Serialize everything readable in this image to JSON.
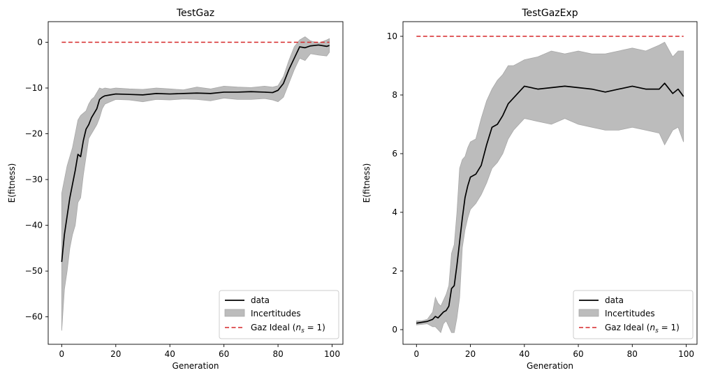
{
  "chart_data": [
    {
      "type": "line",
      "title": "TestGaz",
      "xlabel": "Generation",
      "ylabel": "E(fitness)",
      "xlim": [
        -5,
        104
      ],
      "ylim": [
        -66,
        4.5
      ],
      "xticks": [
        "0",
        "20",
        "40",
        "60",
        "80",
        "100"
      ],
      "yticks": [
        "−60",
        "−50",
        "−40",
        "−30",
        "−20",
        "−10",
        "0"
      ],
      "ytick_values": [
        -60,
        -50,
        -40,
        -30,
        -20,
        -10,
        0
      ],
      "xtick_values": [
        0,
        20,
        40,
        60,
        80,
        100
      ],
      "grid": false,
      "legend_position": "bottom-right",
      "legend": {
        "data": "data",
        "band": "Incertitudes",
        "ideal_prefix": "Gaz Ideal (",
        "ideal_math": "n",
        "ideal_sub": "s",
        "ideal_suffix": " = 1)"
      },
      "ideal": {
        "value": 0,
        "color": "#d62728"
      },
      "x": [
        0,
        1,
        2,
        3,
        4,
        5,
        6,
        7,
        8,
        9,
        10,
        11,
        12,
        13,
        14,
        15,
        16,
        18,
        20,
        25,
        30,
        35,
        40,
        45,
        50,
        55,
        60,
        65,
        70,
        75,
        78,
        80,
        82,
        84,
        86,
        88,
        90,
        92,
        95,
        98,
        99
      ],
      "data": [
        -48,
        -42,
        -38,
        -34,
        -31,
        -28,
        -24.5,
        -25,
        -21.5,
        -19,
        -18,
        -16.5,
        -15.5,
        -14.5,
        -12.5,
        -12,
        -11.7,
        -11.5,
        -11.3,
        -11.4,
        -11.5,
        -11.2,
        -11.3,
        -11.2,
        -11.1,
        -11.2,
        -10.9,
        -10.9,
        -10.8,
        -10.9,
        -11,
        -10.5,
        -9,
        -6,
        -3.5,
        -1,
        -1.2,
        -0.8,
        -0.6,
        -0.9,
        -0.7
      ],
      "upper": [
        -33,
        -30,
        -27,
        -25,
        -23,
        -20,
        -17,
        -16,
        -15.5,
        -15,
        -13.5,
        -12.5,
        -12,
        -11,
        -10,
        -10.2,
        -10,
        -10.2,
        -10,
        -10.2,
        -10.3,
        -10,
        -10.2,
        -10.4,
        -9.8,
        -10.2,
        -9.6,
        -9.8,
        -9.9,
        -9.6,
        -9.8,
        -9.5,
        -7.5,
        -4,
        -1,
        0.5,
        1.2,
        0.3,
        -0.2,
        0.5,
        0.8
      ],
      "lower": [
        -63,
        -54,
        -50,
        -45,
        -42,
        -40,
        -35,
        -34,
        -29,
        -25,
        -21,
        -20,
        -19,
        -18,
        -16.5,
        -14.5,
        -13.5,
        -13,
        -12.5,
        -12.6,
        -13,
        -12.5,
        -12.6,
        -12.4,
        -12.5,
        -12.8,
        -12.2,
        -12.5,
        -12.5,
        -12.3,
        -12.6,
        -13,
        -12,
        -9,
        -6,
        -3.5,
        -4,
        -2.5,
        -2.8,
        -3,
        -2.2
      ],
      "series_colors": {
        "data": "#000000",
        "band": "#bcbcbc",
        "band_edge": "#a8a8a8"
      }
    },
    {
      "type": "line",
      "title": "TestGazExp",
      "xlabel": "Generation",
      "ylabel": "E(fitness)",
      "xlim": [
        -5,
        104
      ],
      "ylim": [
        -0.5,
        10.5
      ],
      "xticks": [
        "0",
        "20",
        "40",
        "60",
        "80",
        "100"
      ],
      "yticks": [
        "0",
        "2",
        "4",
        "6",
        "8",
        "10"
      ],
      "ytick_values": [
        0,
        2,
        4,
        6,
        8,
        10
      ],
      "xtick_values": [
        0,
        20,
        40,
        60,
        80,
        100
      ],
      "grid": false,
      "legend_position": "bottom-right",
      "legend": {
        "data": "data",
        "band": "Incertitudes",
        "ideal_prefix": "Gaz Ideal (",
        "ideal_math": "n",
        "ideal_sub": "s",
        "ideal_suffix": " = 1)"
      },
      "ideal": {
        "value": 10,
        "color": "#d62728"
      },
      "x": [
        0,
        2,
        4,
        6,
        7,
        8,
        9,
        10,
        11,
        12,
        13,
        14,
        15,
        16,
        17,
        18,
        19,
        20,
        22,
        24,
        26,
        28,
        30,
        32,
        34,
        36,
        38,
        40,
        45,
        50,
        55,
        60,
        65,
        70,
        75,
        80,
        85,
        90,
        92,
        95,
        97,
        99
      ],
      "data": [
        0.22,
        0.25,
        0.28,
        0.35,
        0.45,
        0.4,
        0.5,
        0.6,
        0.65,
        0.8,
        1.4,
        1.5,
        2.2,
        3,
        3.8,
        4.5,
        4.9,
        5.2,
        5.3,
        5.6,
        6.3,
        6.9,
        7.0,
        7.3,
        7.7,
        7.9,
        8.1,
        8.3,
        8.2,
        8.25,
        8.3,
        8.25,
        8.2,
        8.1,
        8.2,
        8.3,
        8.2,
        8.2,
        8.4,
        8.05,
        8.2,
        7.95
      ],
      "upper": [
        0.3,
        0.3,
        0.35,
        0.6,
        1.1,
        0.9,
        0.8,
        1.0,
        1.2,
        1.5,
        2.6,
        2.9,
        4,
        5.5,
        5.8,
        5.9,
        6.2,
        6.4,
        6.5,
        7.2,
        7.8,
        8.2,
        8.5,
        8.7,
        9.0,
        9.0,
        9.1,
        9.2,
        9.3,
        9.5,
        9.4,
        9.5,
        9.4,
        9.4,
        9.5,
        9.6,
        9.5,
        9.7,
        9.8,
        9.3,
        9.5,
        9.5
      ],
      "lower": [
        0.16,
        0.18,
        0.2,
        0.1,
        0.1,
        0.0,
        -0.1,
        0.2,
        0.3,
        0.1,
        -0.1,
        -0.1,
        0.4,
        1.1,
        2.8,
        3.4,
        3.8,
        4.1,
        4.3,
        4.6,
        5.0,
        5.5,
        5.7,
        6.0,
        6.5,
        6.8,
        7.0,
        7.2,
        7.1,
        7.0,
        7.2,
        7.0,
        6.9,
        6.8,
        6.8,
        6.9,
        6.8,
        6.7,
        6.3,
        6.8,
        6.9,
        6.4
      ],
      "series_colors": {
        "data": "#000000",
        "band": "#bcbcbc",
        "band_edge": "#a8a8a8"
      }
    }
  ]
}
